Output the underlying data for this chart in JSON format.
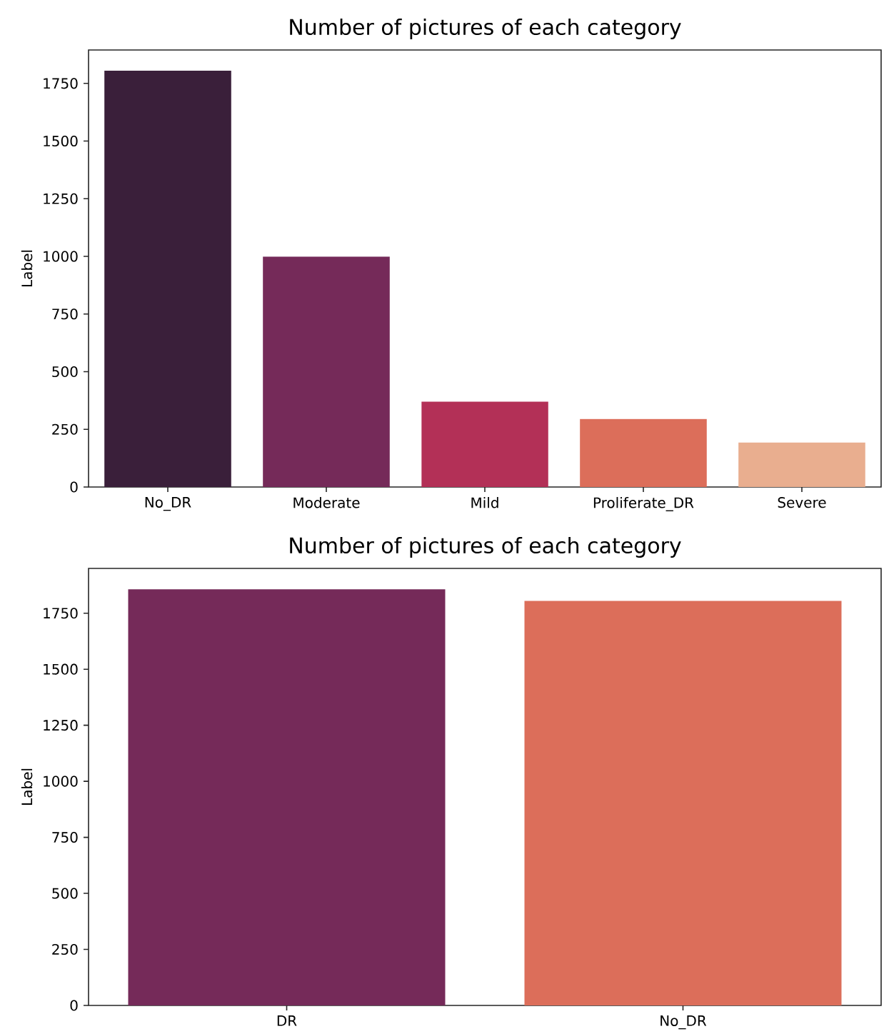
{
  "chart_data": [
    {
      "type": "bar",
      "title": "Number of pictures of each category",
      "ylabel": "Label",
      "categories": [
        "No_DR",
        "Moderate",
        "Mild",
        "Proliferate_DR",
        "Severe"
      ],
      "values": [
        1805,
        999,
        370,
        295,
        193
      ],
      "colors": [
        "#3a1f3a",
        "#752a59",
        "#b33057",
        "#dc6e5a",
        "#e9ae8f"
      ],
      "ylim": [
        0,
        1895
      ],
      "yticks": [
        0,
        250,
        500,
        750,
        1000,
        1250,
        1500,
        1750
      ]
    },
    {
      "type": "bar",
      "title": "Number of pictures of each category",
      "ylabel": "Label",
      "categories": [
        "DR",
        "No_DR"
      ],
      "values": [
        1857,
        1805
      ],
      "colors": [
        "#752a59",
        "#dc6e5a"
      ],
      "ylim": [
        0,
        1950
      ],
      "yticks": [
        0,
        250,
        500,
        750,
        1000,
        1250,
        1500,
        1750
      ]
    }
  ]
}
